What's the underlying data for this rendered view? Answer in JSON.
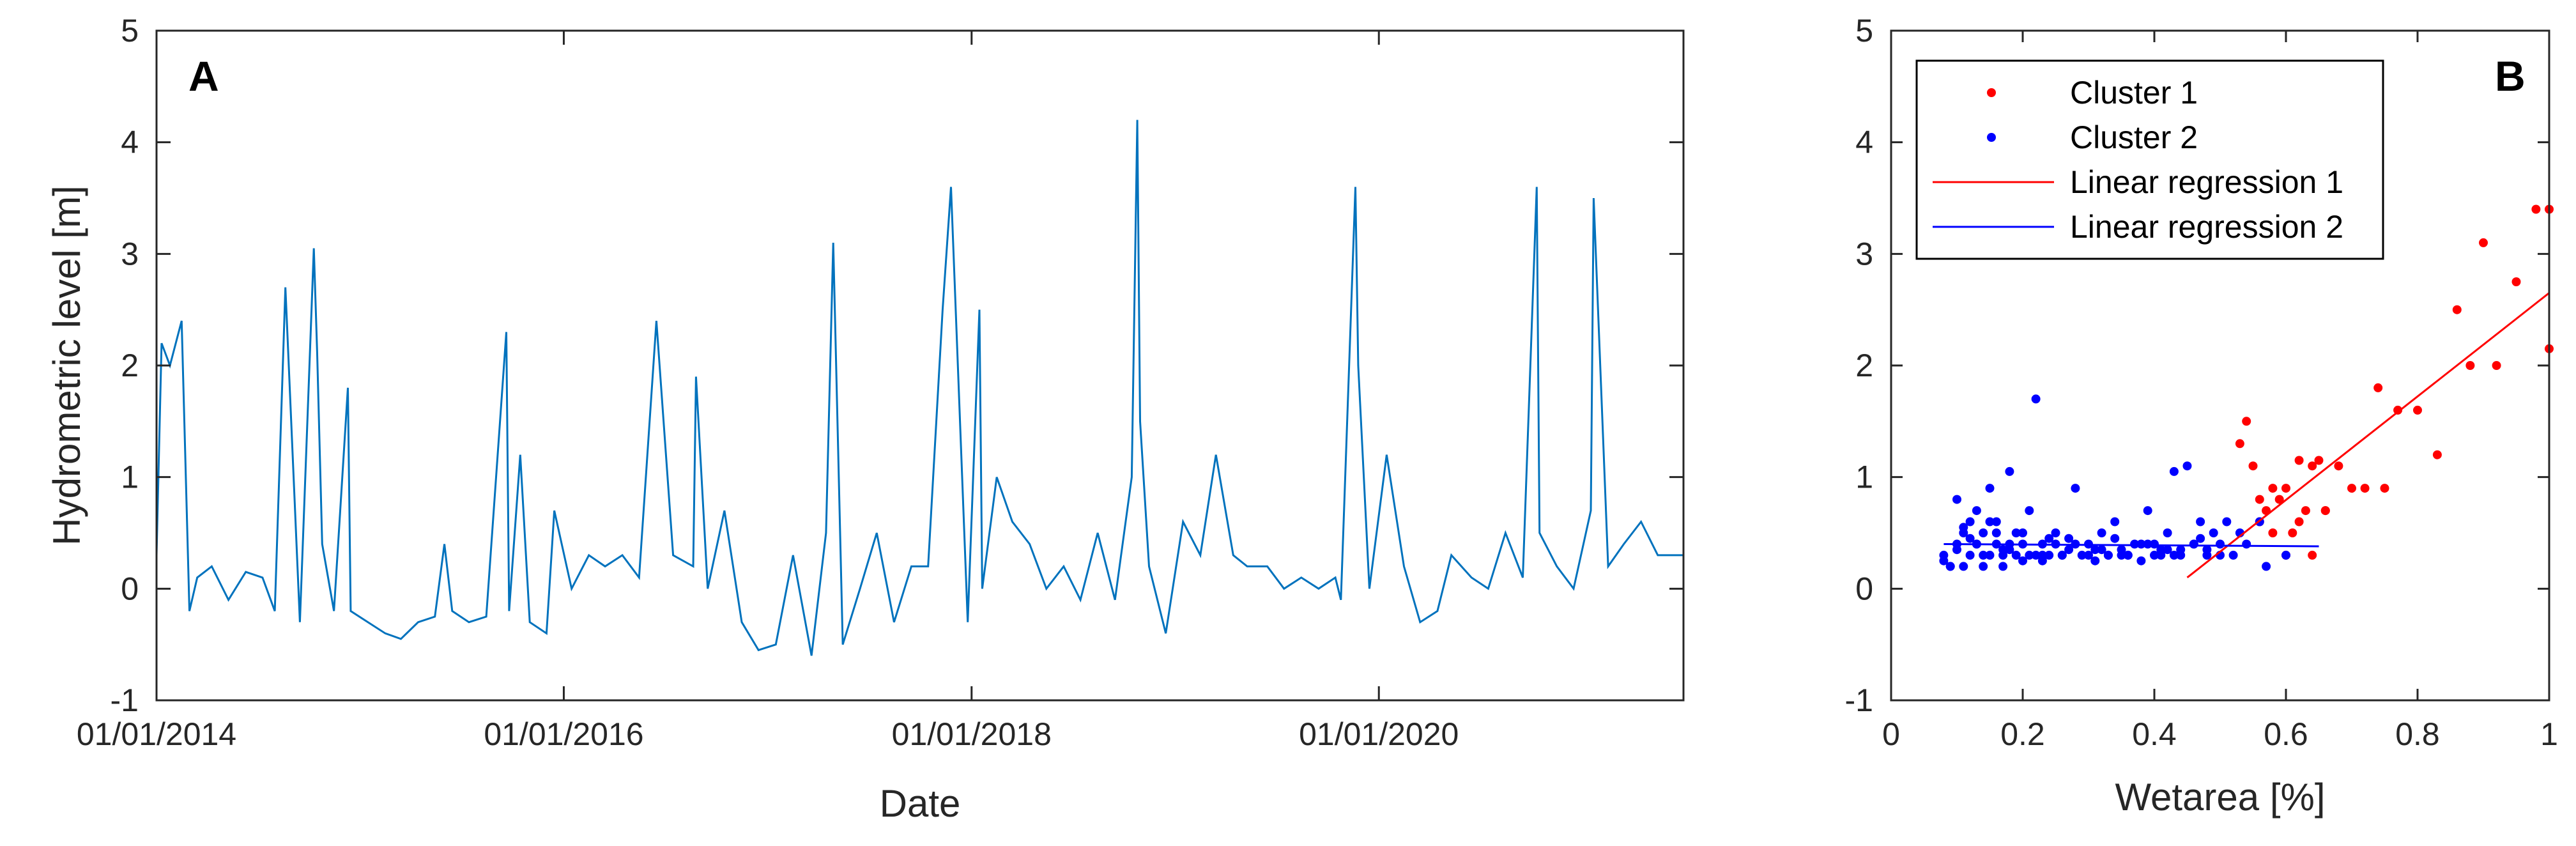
{
  "chart_data": [
    {
      "panel": "A",
      "type": "line",
      "xlabel": "Date",
      "ylabel": "Hydrometric level [m]",
      "xlim": [
        "01/01/2014",
        "30/06/2021"
      ],
      "ylim": [
        -1,
        5
      ],
      "x_ticks": [
        "01/01/2014",
        "01/01/2016",
        "01/01/2018",
        "01/01/2020"
      ],
      "y_ticks": [
        -1,
        0,
        1,
        2,
        3,
        4,
        5
      ],
      "grid": false,
      "line_color": "#0072BD",
      "series": [
        {
          "x": [
            "01/01/2014",
            "10/01/2014",
            "25/01/2014",
            "15/02/2014",
            "01/03/2014",
            "15/03/2014",
            "10/04/2014",
            "10/05/2014",
            "10/06/2014",
            "10/07/2014",
            "01/08/2014",
            "20/08/2014",
            "15/09/2014",
            "10/10/2014",
            "16/10/2014",
            "25/10/2014",
            "15/11/2014",
            "10/12/2014",
            "15/12/2014",
            "15/01/2015",
            "15/02/2015",
            "15/03/2015",
            "15/04/2015",
            "15/05/2015",
            "01/06/2015",
            "15/06/2015",
            "15/07/2015",
            "15/08/2015",
            "20/09/2015",
            "25/09/2015",
            "15/10/2015",
            "01/11/2015",
            "01/12/2015",
            "15/12/2015",
            "15/01/2016",
            "15/02/2016",
            "15/03/2016",
            "15/04/2016",
            "15/05/2016",
            "15/06/2016",
            "15/07/2016",
            "20/08/2016",
            "25/08/2016",
            "15/09/2016",
            "15/10/2016",
            "15/11/2016",
            "15/12/2016",
            "15/01/2017",
            "15/02/2017",
            "20/03/2017",
            "15/04/2017",
            "28/04/2017",
            "15/05/2017",
            "15/06/2017",
            "15/07/2017",
            "15/08/2017",
            "15/09/2017",
            "15/10/2017",
            "10/11/2017",
            "25/11/2017",
            "25/12/2017",
            "15/01/2018",
            "20/01/2018",
            "15/02/2018",
            "15/03/2018",
            "15/04/2018",
            "15/05/2018",
            "15/06/2018",
            "15/07/2018",
            "15/08/2018",
            "15/09/2018",
            "15/10/2018",
            "25/10/2018",
            "30/10/2018",
            "15/11/2018",
            "15/12/2018",
            "15/01/2019",
            "15/02/2019",
            "15/03/2019",
            "15/04/2019",
            "10/05/2019",
            "15/06/2019",
            "15/07/2019",
            "15/08/2019",
            "15/09/2019",
            "15/10/2019",
            "25/10/2019",
            "20/11/2019",
            "25/11/2019",
            "15/12/2019",
            "15/01/2020",
            "15/02/2020",
            "15/03/2020",
            "15/04/2020",
            "10/05/2020",
            "15/06/2020",
            "15/07/2020",
            "15/08/2020",
            "15/09/2020",
            "10/10/2020",
            "15/10/2020",
            "15/11/2020",
            "15/12/2020",
            "15/01/2021",
            "20/01/2021",
            "15/02/2021",
            "15/03/2021",
            "15/04/2021",
            "15/05/2021",
            "30/06/2021"
          ],
          "y": [
            0.3,
            2.2,
            2.0,
            2.4,
            -0.2,
            0.1,
            0.2,
            -0.1,
            0.15,
            0.1,
            -0.2,
            2.7,
            -0.3,
            3.05,
            2.1,
            0.4,
            -0.2,
            1.8,
            -0.2,
            -0.3,
            -0.4,
            -0.45,
            -0.3,
            -0.25,
            0.4,
            -0.2,
            -0.3,
            -0.25,
            2.3,
            -0.2,
            1.2,
            -0.3,
            -0.4,
            0.7,
            0.0,
            0.3,
            0.2,
            0.3,
            0.1,
            2.4,
            0.3,
            0.2,
            1.9,
            0.0,
            0.7,
            -0.3,
            -0.55,
            -0.5,
            0.3,
            -0.6,
            0.5,
            3.1,
            -0.5,
            0.0,
            0.5,
            -0.3,
            0.2,
            0.2,
            2.5,
            3.6,
            -0.3,
            2.5,
            0.0,
            1.0,
            0.6,
            0.4,
            0.0,
            0.2,
            -0.1,
            0.5,
            -0.1,
            1.0,
            4.2,
            1.5,
            0.2,
            -0.4,
            0.6,
            0.3,
            1.2,
            0.3,
            0.2,
            0.2,
            0.0,
            0.1,
            0.0,
            0.1,
            -0.1,
            3.6,
            2.0,
            0.0,
            1.2,
            0.2,
            -0.3,
            -0.2,
            0.3,
            0.1,
            0.0,
            0.5,
            0.1,
            3.6,
            0.5,
            0.2,
            0.0,
            0.7,
            3.5,
            0.2,
            0.4,
            0.6,
            0.3,
            0.3
          ]
        }
      ]
    },
    {
      "panel": "B",
      "type": "scatter",
      "xlabel": "Wetarea [%]",
      "ylabel": "",
      "xlim": [
        0,
        1
      ],
      "ylim": [
        -1,
        5
      ],
      "x_ticks": [
        0,
        0.2,
        0.4,
        0.6,
        0.8,
        1
      ],
      "y_ticks": [
        -1,
        0,
        1,
        2,
        3,
        4,
        5
      ],
      "grid": false,
      "legend_position": "top-left",
      "series": [
        {
          "name": "Cluster 1",
          "kind": "points",
          "color": "#ff0000",
          "x": [
            0.53,
            0.54,
            0.55,
            0.56,
            0.57,
            0.58,
            0.59,
            0.6,
            0.61,
            0.62,
            0.63,
            0.64,
            0.65,
            0.66,
            0.68,
            0.7,
            0.72,
            0.74,
            0.75,
            0.77,
            0.8,
            0.83,
            0.86,
            0.88,
            0.9,
            0.92,
            0.95,
            0.98,
            1.0,
            1.0,
            0.6,
            0.62,
            0.64,
            0.58,
            0.66,
            0.56
          ],
          "y": [
            1.3,
            1.5,
            1.1,
            0.6,
            0.7,
            0.9,
            0.8,
            0.9,
            0.5,
            1.15,
            0.7,
            1.1,
            1.15,
            0.7,
            1.1,
            0.9,
            0.9,
            1.8,
            0.9,
            1.6,
            1.6,
            1.2,
            2.5,
            2.0,
            3.1,
            2.0,
            2.75,
            3.4,
            2.15,
            3.4,
            0.3,
            0.6,
            0.3,
            0.5,
            0.7,
            0.8
          ]
        },
        {
          "name": "Cluster 2",
          "kind": "points",
          "color": "#0000ff",
          "x": [
            0.08,
            0.09,
            0.1,
            0.1,
            0.11,
            0.11,
            0.12,
            0.12,
            0.13,
            0.13,
            0.14,
            0.14,
            0.15,
            0.15,
            0.16,
            0.16,
            0.17,
            0.17,
            0.18,
            0.18,
            0.19,
            0.2,
            0.2,
            0.21,
            0.21,
            0.22,
            0.23,
            0.23,
            0.24,
            0.25,
            0.26,
            0.27,
            0.28,
            0.29,
            0.3,
            0.31,
            0.32,
            0.33,
            0.34,
            0.35,
            0.36,
            0.37,
            0.38,
            0.39,
            0.4,
            0.41,
            0.42,
            0.43,
            0.44,
            0.45,
            0.46,
            0.47,
            0.48,
            0.49,
            0.5,
            0.51,
            0.52,
            0.53,
            0.54,
            0.56,
            0.57,
            0.6,
            0.08,
            0.1,
            0.12,
            0.14,
            0.16,
            0.18,
            0.2,
            0.22,
            0.24,
            0.26,
            0.28,
            0.3,
            0.32,
            0.34,
            0.36,
            0.38,
            0.4,
            0.42,
            0.44,
            0.46,
            0.48,
            0.5,
            0.11,
            0.13,
            0.15,
            0.19,
            0.23,
            0.27,
            0.31,
            0.35,
            0.39,
            0.43,
            0.47,
            0.09,
            0.17,
            0.25,
            0.33,
            0.41
          ],
          "y": [
            0.3,
            0.2,
            0.4,
            0.8,
            0.5,
            0.2,
            0.6,
            0.3,
            0.7,
            0.4,
            0.5,
            0.2,
            0.9,
            0.3,
            0.4,
            0.6,
            0.3,
            0.2,
            1.05,
            0.4,
            0.3,
            0.5,
            0.25,
            0.7,
            0.3,
            1.7,
            0.4,
            0.25,
            0.3,
            0.5,
            0.3,
            0.35,
            0.9,
            0.3,
            0.4,
            0.25,
            0.5,
            0.3,
            0.6,
            0.35,
            0.3,
            0.4,
            0.25,
            0.7,
            0.4,
            0.3,
            0.5,
            1.05,
            0.35,
            1.1,
            0.4,
            0.6,
            0.3,
            0.5,
            0.4,
            0.6,
            0.3,
            0.5,
            0.4,
            0.6,
            0.2,
            0.3,
            0.25,
            0.35,
            0.45,
            0.3,
            0.5,
            0.35,
            0.4,
            0.3,
            0.45,
            0.3,
            0.4,
            0.3,
            0.35,
            0.45,
            0.3,
            0.4,
            0.3,
            0.35,
            0.3,
            0.4,
            0.35,
            0.3,
            0.55,
            0.4,
            0.6,
            0.5,
            0.3,
            0.45,
            0.35,
            0.3,
            0.4,
            0.3,
            0.45,
            0.2,
            0.35,
            0.4,
            0.3,
            0.35
          ]
        },
        {
          "name": "Linear regression 1",
          "kind": "line",
          "color": "#ff0000",
          "x": [
            0.45,
            1.0
          ],
          "y": [
            0.1,
            2.65
          ]
        },
        {
          "name": "Linear regression 2",
          "kind": "line",
          "color": "#0000ff",
          "x": [
            0.08,
            0.65
          ],
          "y": [
            0.4,
            0.38
          ]
        }
      ]
    }
  ]
}
